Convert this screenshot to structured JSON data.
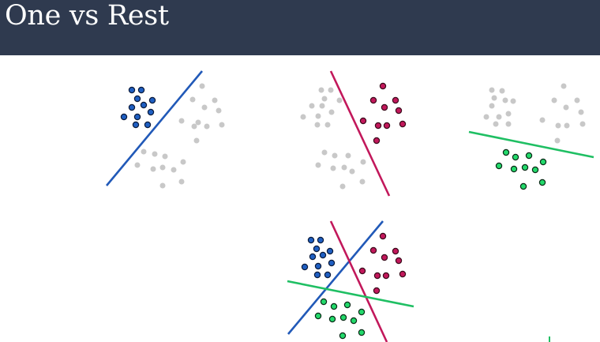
{
  "slide": {
    "title": "One vs Rest"
  },
  "colors": {
    "header_bg": "#2f3a4f",
    "blue": "#1f5fc2",
    "red": "#c2185b",
    "green": "#23d96b",
    "gray": "#c8c8c8",
    "boundary_blue": "#2159b8",
    "boundary_red": "#c2185b",
    "boundary_green": "#1fbf63"
  },
  "panels": [
    {
      "name": "blue-vs-rest",
      "highlighted_class": "blue"
    },
    {
      "name": "red-vs-rest",
      "highlighted_class": "red"
    },
    {
      "name": "green-vs-rest",
      "highlighted_class": "green"
    },
    {
      "name": "combined",
      "highlighted_class": "all"
    }
  ]
}
